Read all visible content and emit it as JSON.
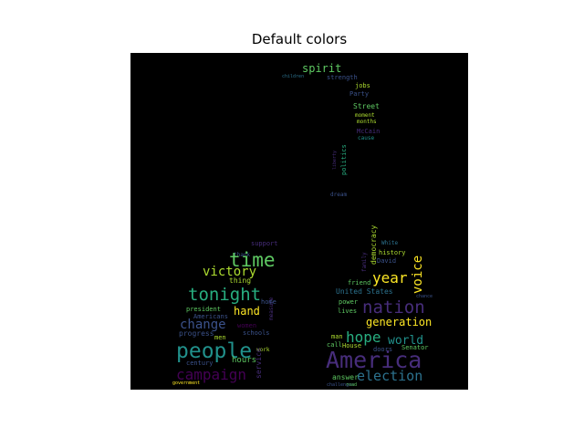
{
  "title": "Default colors",
  "palette": "viridis",
  "background": "#000000",
  "colors": {
    "dark_purple": "#440154",
    "purple": "#472d7b",
    "blue": "#3b528b",
    "steel": "#2c728e",
    "teal": "#21918c",
    "green_teal": "#28ae80",
    "green": "#5ec962",
    "lime": "#addc30",
    "yellow": "#fde725"
  },
  "words": [
    {
      "text": "spirit",
      "color": "#5ec962"
    },
    {
      "text": "strength",
      "color": "#3b528b"
    },
    {
      "text": "children",
      "color": "#2c728e"
    },
    {
      "text": "jobs",
      "color": "#addc30"
    },
    {
      "text": "Party",
      "color": "#3b528b"
    },
    {
      "text": "Street",
      "color": "#5ec962"
    },
    {
      "text": "moment",
      "color": "#addc30"
    },
    {
      "text": "months",
      "color": "#addc30"
    },
    {
      "text": "McCain",
      "color": "#472d7b"
    },
    {
      "text": "cause",
      "color": "#21918c"
    },
    {
      "text": "politics",
      "color": "#28ae80"
    },
    {
      "text": "liberty",
      "color": "#472d7b"
    },
    {
      "text": "dream",
      "color": "#3b528b"
    },
    {
      "text": "democracy",
      "color": "#addc30"
    },
    {
      "text": "White",
      "color": "#2c728e"
    },
    {
      "text": "history",
      "color": "#addc30"
    },
    {
      "text": "David",
      "color": "#3b528b"
    },
    {
      "text": "family",
      "color": "#472d7b"
    },
    {
      "text": "support",
      "color": "#472d7b"
    },
    {
      "text": "thank",
      "color": "#3b528b"
    },
    {
      "text": "time",
      "color": "#5ec962"
    },
    {
      "text": "thing",
      "color": "#addc30"
    },
    {
      "text": "victory",
      "color": "#addc30"
    },
    {
      "text": "year",
      "color": "#fde725"
    },
    {
      "text": "voice",
      "color": "#fde725"
    },
    {
      "text": "tonight",
      "color": "#28ae80"
    },
    {
      "text": "friend",
      "color": "#5ec962"
    },
    {
      "text": "United States",
      "color": "#2c728e"
    },
    {
      "text": "nation",
      "color": "#472d7b"
    },
    {
      "text": "measure",
      "color": "#472d7b"
    },
    {
      "text": "power",
      "color": "#5ec962"
    },
    {
      "text": "hand",
      "color": "#fde725"
    },
    {
      "text": "president",
      "color": "#5ec962"
    },
    {
      "text": "Americans",
      "color": "#3b528b"
    },
    {
      "text": "change",
      "color": "#3b528b"
    },
    {
      "text": "women",
      "color": "#440154"
    },
    {
      "text": "lives",
      "color": "#5ec962"
    },
    {
      "text": "generation",
      "color": "#fde725"
    },
    {
      "text": "progress",
      "color": "#3b528b"
    },
    {
      "text": "men",
      "color": "#addc30"
    },
    {
      "text": "schools",
      "color": "#3b528b"
    },
    {
      "text": "hope",
      "color": "#28ae80"
    },
    {
      "text": "world",
      "color": "#21918c"
    },
    {
      "text": "people",
      "color": "#21918c"
    },
    {
      "text": "hours",
      "color": "#5ec962"
    },
    {
      "text": "century",
      "color": "#3b528b"
    },
    {
      "text": "work",
      "color": "#addc30"
    },
    {
      "text": "service",
      "color": "#472d7b"
    },
    {
      "text": "America",
      "color": "#472d7b"
    },
    {
      "text": "House",
      "color": "#addc30"
    },
    {
      "text": "doors",
      "color": "#3b528b"
    },
    {
      "text": "Senator",
      "color": "#5ec962"
    },
    {
      "text": "campaign",
      "color": "#440154"
    },
    {
      "text": "election",
      "color": "#2c728e"
    },
    {
      "text": "answer",
      "color": "#5ec962"
    },
    {
      "text": "government",
      "color": "#fde725"
    },
    {
      "text": "challenges",
      "color": "#3b528b"
    },
    {
      "text": "road",
      "color": "#5ec962"
    },
    {
      "text": "call",
      "color": "#5ec962"
    },
    {
      "text": "man",
      "color": "#addc30"
    },
    {
      "text": "home",
      "color": "#3b528b"
    },
    {
      "text": "chance",
      "color": "#3b528b"
    }
  ]
}
